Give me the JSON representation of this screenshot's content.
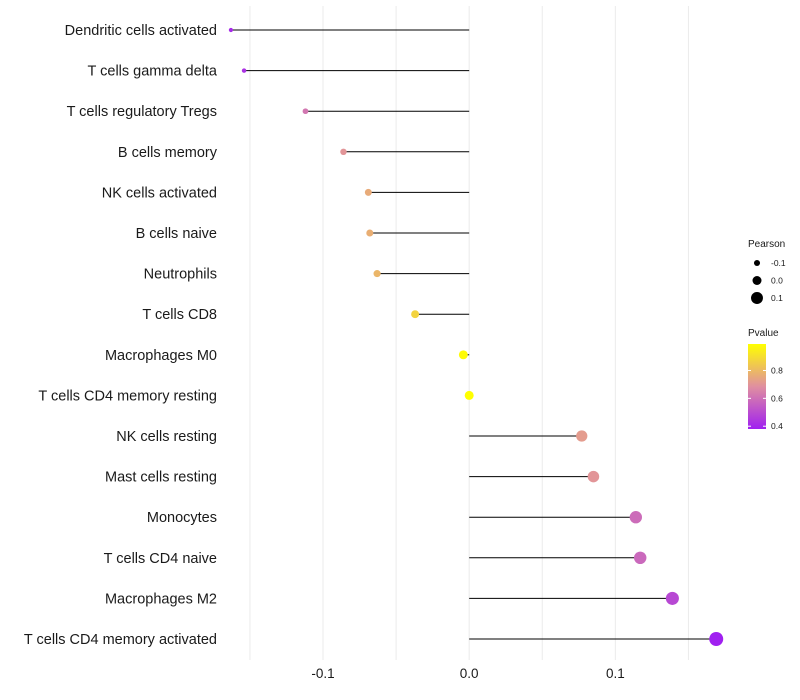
{
  "chart_data": {
    "type": "lollipop",
    "title": "",
    "xlabel": "",
    "ylabel": "",
    "xlim": [
      -0.165,
      0.175
    ],
    "x_ticks": [
      {
        "value": -0.1,
        "label": "-0.1"
      },
      {
        "value": 0.0,
        "label": "0.0"
      },
      {
        "value": 0.1,
        "label": "0.1"
      }
    ],
    "grid": true,
    "points": [
      {
        "label": "Dendritic cells activated",
        "pearson": -0.163,
        "pvalue": 0.41
      },
      {
        "label": "T cells gamma delta",
        "pearson": -0.154,
        "pvalue": 0.43
      },
      {
        "label": "T cells regulatory  Tregs",
        "pearson": -0.112,
        "pvalue": 0.62
      },
      {
        "label": "B cells memory",
        "pearson": -0.086,
        "pvalue": 0.7
      },
      {
        "label": "NK cells activated",
        "pearson": -0.069,
        "pvalue": 0.76
      },
      {
        "label": "B cells naive",
        "pearson": -0.068,
        "pvalue": 0.77
      },
      {
        "label": "Neutrophils",
        "pearson": -0.063,
        "pvalue": 0.79
      },
      {
        "label": "T cells CD8",
        "pearson": -0.037,
        "pvalue": 0.87
      },
      {
        "label": "Macrophages M0",
        "pearson": -0.004,
        "pvalue": 0.98
      },
      {
        "label": "T cells CD4 memory resting",
        "pearson": 0.0,
        "pvalue": 0.99
      },
      {
        "label": "NK cells resting",
        "pearson": 0.077,
        "pvalue": 0.72
      },
      {
        "label": "Mast cells resting",
        "pearson": 0.085,
        "pvalue": 0.7
      },
      {
        "label": "Monocytes",
        "pearson": 0.114,
        "pvalue": 0.59
      },
      {
        "label": "T cells CD4 naive",
        "pearson": 0.117,
        "pvalue": 0.58
      },
      {
        "label": "Macrophages M2",
        "pearson": 0.139,
        "pvalue": 0.49
      },
      {
        "label": "T cells CD4 memory activated",
        "pearson": 0.169,
        "pvalue": 0.38
      }
    ],
    "legend": {
      "position": "right",
      "size_title": "Pearson",
      "size_entries": [
        {
          "value": -0.1,
          "label": "-0.1"
        },
        {
          "value": 0.0,
          "label": "0.0"
        },
        {
          "value": 0.1,
          "label": "0.1"
        }
      ],
      "color_title": "Pvalue",
      "color_range": [
        0.38,
        0.99
      ],
      "color_ticks": [
        {
          "value": 0.8,
          "label": "0.8"
        },
        {
          "value": 0.6,
          "label": "0.6"
        },
        {
          "value": 0.4,
          "label": "0.4"
        }
      ],
      "colors": {
        "low": "#A020F0",
        "mid": "#E08FA0",
        "high": "#FFFF00"
      }
    }
  }
}
